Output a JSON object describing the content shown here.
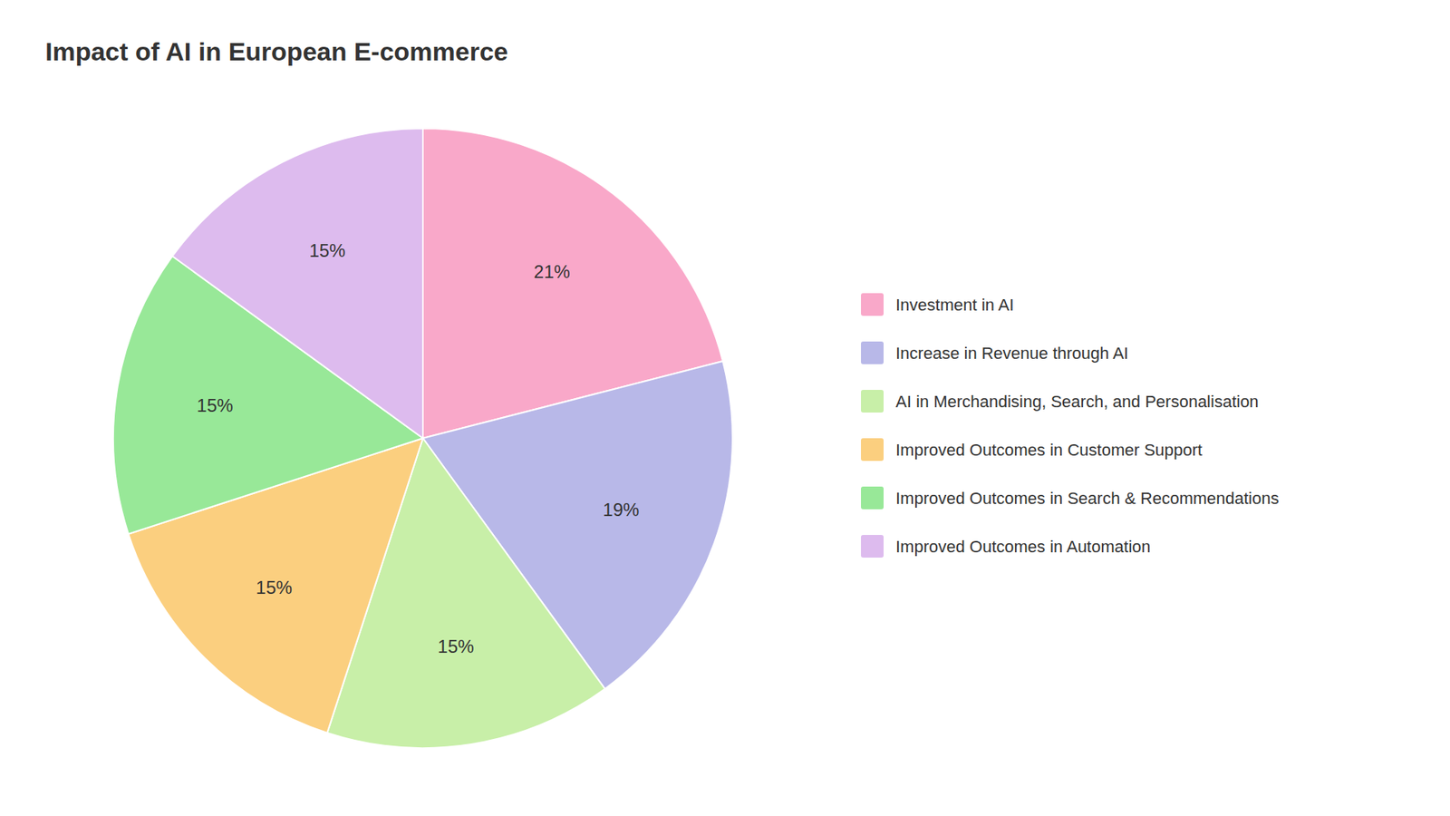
{
  "chart_data": {
    "type": "pie",
    "title": "Impact of AI in European E-commerce",
    "categories": [
      "Investment in AI",
      "Increase in Revenue through AI",
      "AI in Merchandising, Search, and Personalisation",
      "Improved Outcomes in Customer Support",
      "Improved Outcomes in Search & Recommendations",
      "Improved Outcomes in Automation"
    ],
    "values": [
      21,
      19,
      15,
      15,
      15,
      15
    ],
    "value_labels": [
      "21%",
      "19%",
      "15%",
      "15%",
      "15%",
      "15%"
    ],
    "colors": [
      "#F9A8C9",
      "#B8B8E8",
      "#C8EFA8",
      "#FBCF7F",
      "#98E898",
      "#DDBBEE"
    ],
    "data_labels": true,
    "legend": "right"
  }
}
